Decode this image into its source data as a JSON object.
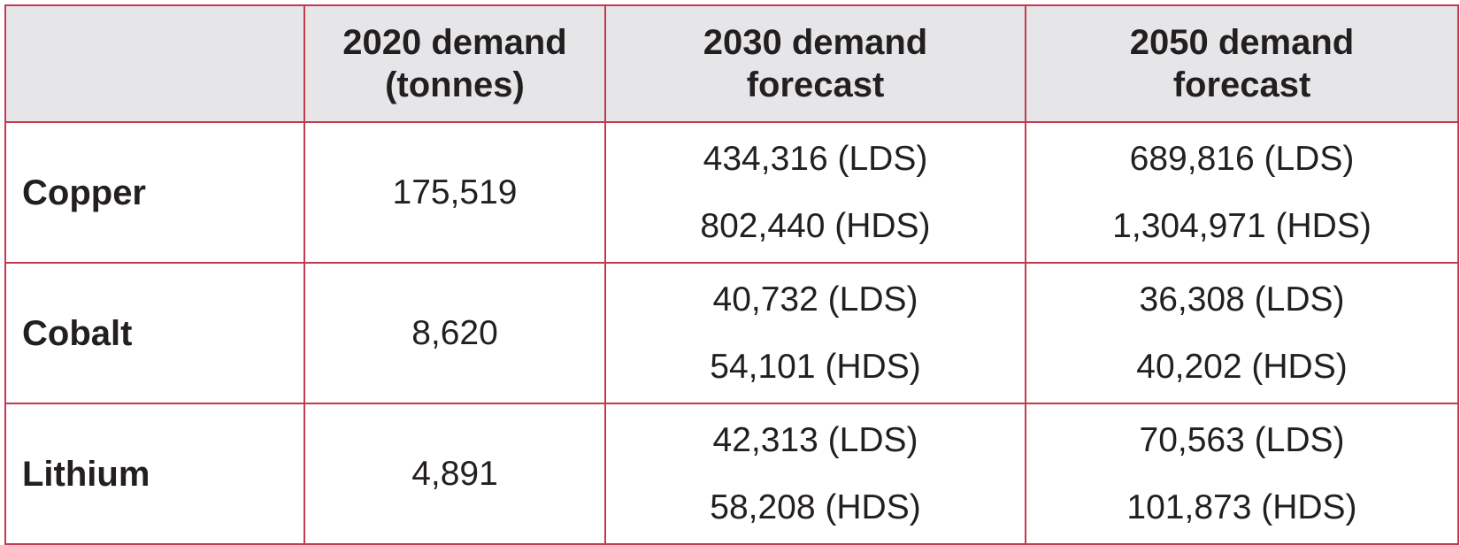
{
  "table": {
    "headers": [
      "",
      "2020 demand (tonnes)",
      "2030 demand forecast",
      "2050 demand forecast"
    ],
    "header_lines": [
      [],
      [
        "2020 demand",
        "(tonnes)"
      ],
      [
        "2030 demand",
        "forecast"
      ],
      [
        "2050 demand",
        "forecast"
      ]
    ],
    "rows": [
      {
        "mineral": "Copper",
        "d2020": "175,519",
        "d2030": [
          "434,316 (LDS)",
          "802,440 (HDS)"
        ],
        "d2050": [
          "689,816 (LDS)",
          "1,304,971 (HDS)"
        ]
      },
      {
        "mineral": "Cobalt",
        "d2020": "8,620",
        "d2030": [
          "40,732 (LDS)",
          "54,101 (HDS)"
        ],
        "d2050": [
          "36,308 (LDS)",
          "40,202 (HDS)"
        ]
      },
      {
        "mineral": "Lithium",
        "d2020": "4,891",
        "d2030": [
          "42,313 (LDS)",
          "58,208 (HDS)"
        ],
        "d2050": [
          "70,563 (LDS)",
          "101,873 (HDS)"
        ]
      }
    ]
  },
  "colors": {
    "border": "#c23b4e",
    "header_bg": "#e6e6e8",
    "text": "#231f20"
  }
}
